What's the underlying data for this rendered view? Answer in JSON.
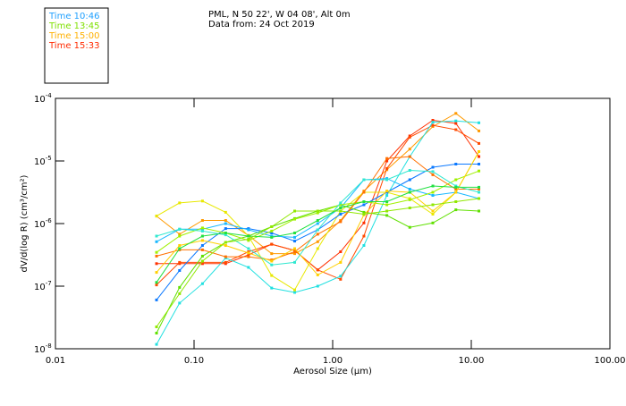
{
  "header": {
    "title": "PML, N 50 22', W 04 08', Alt 0m",
    "subtitle": "Data from: 24 Oct 2019"
  },
  "legend": [
    {
      "label": "Time 10:46",
      "color": "#1fa0ff"
    },
    {
      "label": "Time 13:45",
      "color": "#7fe000"
    },
    {
      "label": "Time 15:00",
      "color": "#ffb000"
    },
    {
      "label": "Time 15:33",
      "color": "#ff2a00"
    }
  ],
  "chart_data": {
    "type": "line",
    "xscale": "log",
    "yscale": "log",
    "xlabel": "Aerosol Size (μm)",
    "ylabel": "dV/d(log R) (cm³/cm²)",
    "xlim": [
      0.01,
      100
    ],
    "ylim": [
      1e-08,
      0.0001
    ],
    "xticks": [
      "0.01",
      "0.10",
      "1.00",
      "10.00",
      "100.00"
    ],
    "yticks": [
      {
        "base": "10",
        "exp": "-4"
      },
      {
        "base": "10",
        "exp": "-5"
      },
      {
        "base": "10",
        "exp": "-6"
      },
      {
        "base": "10",
        "exp": "-7"
      },
      {
        "base": "10",
        "exp": "-8"
      }
    ],
    "x": [
      0.0536,
      0.0786,
      0.115,
      0.169,
      0.247,
      0.363,
      0.532,
      0.78,
      1.14,
      1.68,
      2.46,
      3.6,
      5.28,
      7.74,
      11.35
    ],
    "series_log10": [
      {
        "color": "#ff9a00",
        "values": [
          -5.88,
          -6.17,
          -5.95,
          -5.95,
          -6.19,
          -6.48,
          -6.48,
          -6.29,
          -5.95,
          -5.48,
          -5.14,
          -4.81,
          -4.45,
          -4.24,
          -4.52
        ]
      },
      {
        "color": "#ff3000",
        "values": [
          -6.64,
          -6.64,
          -6.64,
          -6.64,
          -6.5,
          -6.33,
          -6.43,
          -6.74,
          -6.45,
          -5.99,
          -5.0,
          -4.6,
          -4.35,
          -4.4,
          -4.93
        ]
      },
      {
        "color": "#ff4a00",
        "values": [
          -6.98,
          -6.62,
          -6.62,
          -6.62,
          -6.45,
          -6.33,
          -6.43,
          -6.74,
          -6.89,
          -6.2,
          -5.12,
          -4.62,
          -4.43,
          -4.5,
          -4.72
        ]
      },
      {
        "color": "#20e0e0",
        "values": [
          -7.93,
          -7.27,
          -6.96,
          -6.55,
          -6.7,
          -7.03,
          -7.1,
          -7.0,
          -6.84,
          -6.35,
          -5.55,
          -4.93,
          -4.38,
          -4.36,
          -4.39
        ]
      },
      {
        "color": "#e8e800",
        "values": [
          -5.88,
          -5.67,
          -5.64,
          -5.82,
          -6.2,
          -6.83,
          -7.06,
          -6.4,
          -5.8,
          -5.5,
          -5.5,
          -5.6,
          -5.85,
          -5.5,
          -4.85
        ]
      },
      {
        "color": "#0a78ff",
        "values": [
          -7.22,
          -6.75,
          -6.35,
          -6.08,
          -6.08,
          -6.15,
          -6.28,
          -6.1,
          -5.85,
          -5.7,
          -5.5,
          -5.3,
          -5.1,
          -5.05,
          -5.05
        ]
      },
      {
        "color": "#60e000",
        "values": [
          -7.75,
          -7.02,
          -6.52,
          -6.3,
          -6.2,
          -6.05,
          -5.92,
          -5.8,
          -5.7,
          -5.82,
          -5.87,
          -6.06,
          -5.99,
          -5.78,
          -5.8
        ]
      },
      {
        "color": "#18b8ff",
        "values": [
          -6.29,
          -6.09,
          -6.09,
          -6.0,
          -6.1,
          -6.2,
          -6.22,
          -6.0,
          -5.75,
          -5.3,
          -5.28,
          -5.45,
          -5.55,
          -5.5,
          -5.6
        ]
      },
      {
        "color": "#a0f000",
        "values": [
          -6.46,
          -6.2,
          -6.07,
          -6.15,
          -6.27,
          -6.12,
          -5.93,
          -5.83,
          -5.7,
          -5.65,
          -5.7,
          -5.62,
          -5.5,
          -5.3,
          -5.16
        ]
      },
      {
        "color": "#ff7000",
        "values": [
          -6.52,
          -6.42,
          -6.42,
          -6.53,
          -6.53,
          -6.58,
          -6.45,
          -6.17,
          -5.97,
          -5.5,
          -4.96,
          -4.93,
          -5.22,
          -5.45,
          -5.45
        ]
      },
      {
        "color": "#ffd000",
        "values": [
          -6.78,
          -6.35,
          -6.27,
          -6.35,
          -6.47,
          -6.6,
          -6.4,
          -6.82,
          -6.62,
          -5.86,
          -5.48,
          -5.5,
          -5.8,
          -5.5,
          -4.85
        ]
      },
      {
        "color": "#30e8d0",
        "values": [
          -6.2,
          -6.09,
          -6.12,
          -6.18,
          -6.4,
          -6.66,
          -6.62,
          -6.1,
          -5.67,
          -5.3,
          -5.3,
          -5.15,
          -5.17,
          -5.4,
          -5.5
        ]
      },
      {
        "color": "#20e040",
        "values": [
          -6.94,
          -6.4,
          -6.2,
          -6.15,
          -6.2,
          -6.22,
          -6.15,
          -5.95,
          -5.75,
          -5.65,
          -5.65,
          -5.5,
          -5.4,
          -5.42,
          -5.42
        ]
      },
      {
        "color": "#90e800",
        "values": [
          -7.65,
          -7.12,
          -6.6,
          -6.3,
          -6.25,
          -6.05,
          -5.8,
          -5.8,
          -5.8,
          -5.85,
          -5.8,
          -5.75,
          -5.7,
          -5.65,
          -5.6
        ]
      }
    ]
  }
}
